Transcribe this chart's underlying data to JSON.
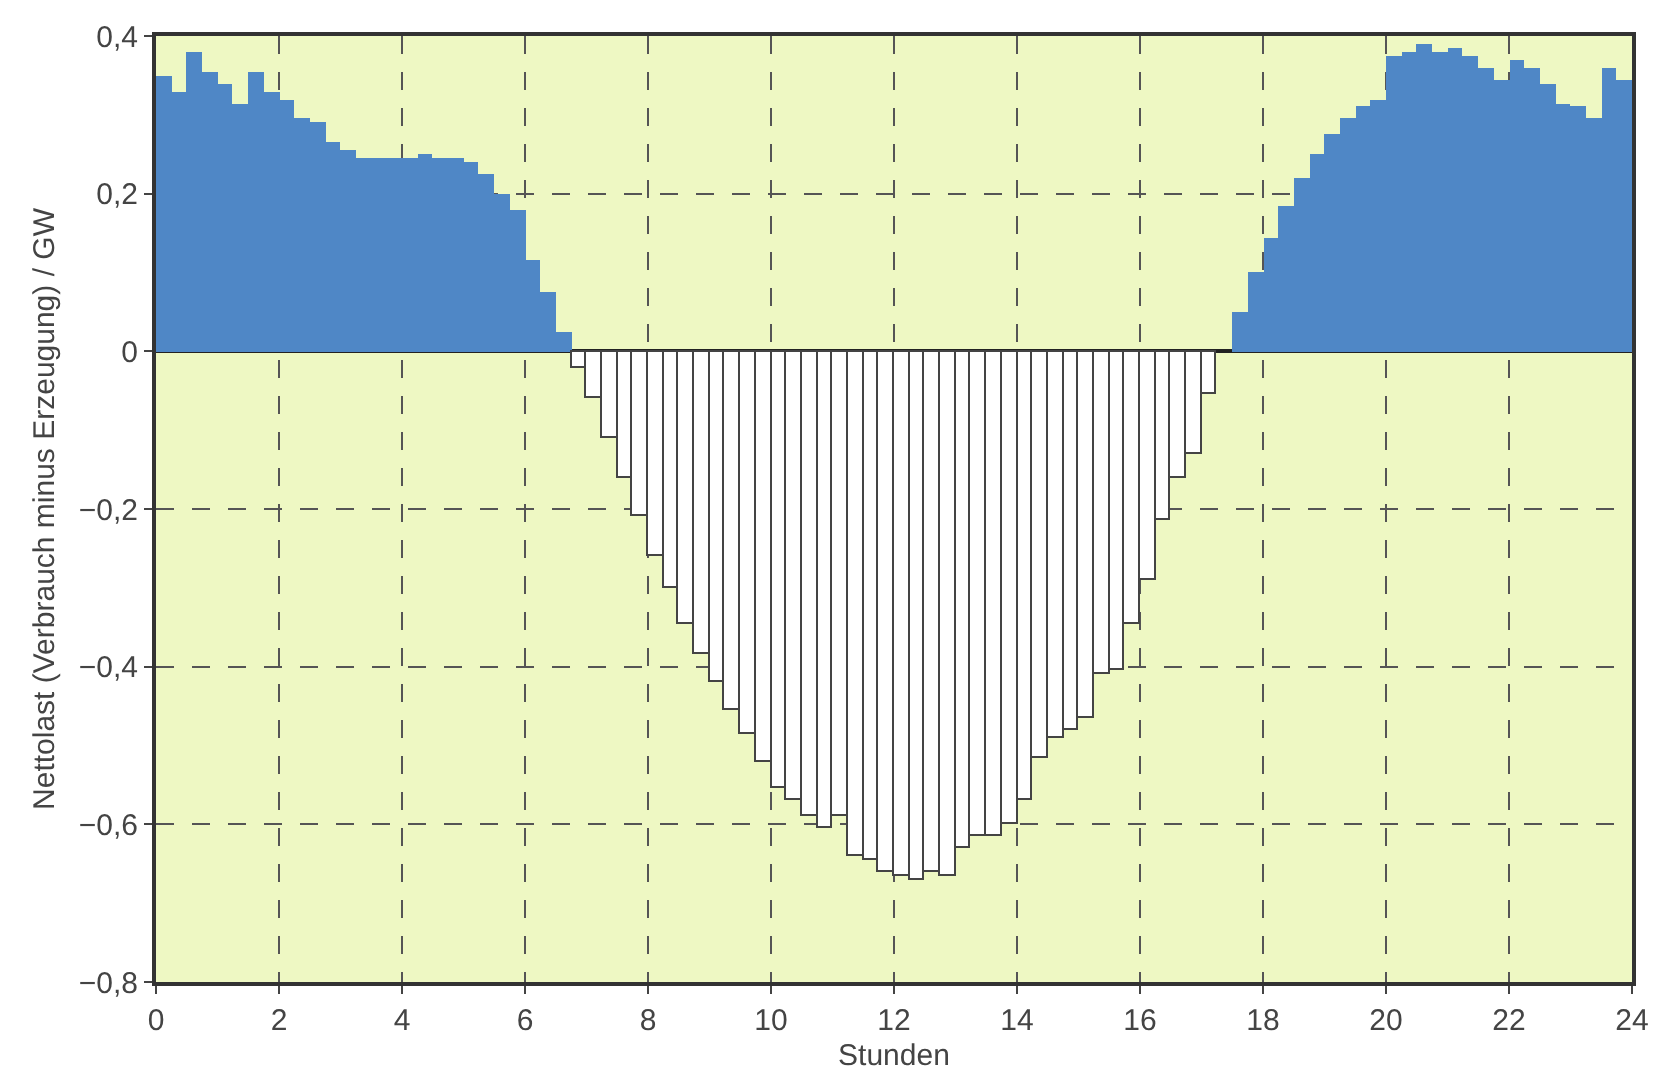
{
  "chart_data": {
    "type": "bar",
    "xlabel": "Stunden",
    "ylabel": "Nettolast (Verbrauch minus Erzeugung) / GW",
    "x": [
      0.125,
      0.375,
      0.625,
      0.875,
      1.125,
      1.375,
      1.625,
      1.875,
      2.125,
      2.375,
      2.625,
      2.875,
      3.125,
      3.375,
      3.625,
      3.875,
      4.125,
      4.375,
      4.625,
      4.875,
      5.125,
      5.375,
      5.625,
      5.875,
      6.125,
      6.375,
      6.625,
      6.875,
      7.125,
      7.375,
      7.625,
      7.875,
      8.125,
      8.375,
      8.625,
      8.875,
      9.125,
      9.375,
      9.625,
      9.875,
      10.125,
      10.375,
      10.625,
      10.875,
      11.125,
      11.375,
      11.625,
      11.875,
      12.125,
      12.375,
      12.625,
      12.875,
      13.125,
      13.375,
      13.625,
      13.875,
      14.125,
      14.375,
      14.625,
      14.875,
      15.125,
      15.375,
      15.625,
      15.875,
      16.125,
      16.375,
      16.625,
      16.875,
      17.125,
      17.375,
      17.625,
      17.875,
      18.125,
      18.375,
      18.625,
      18.875,
      19.125,
      19.375,
      19.625,
      19.875,
      20.125,
      20.375,
      20.625,
      20.875,
      21.125,
      21.375,
      21.625,
      21.875,
      22.125,
      22.375,
      22.625,
      22.875,
      23.125,
      23.375,
      23.625,
      23.875
    ],
    "series": [
      {
        "color": "#4f87c6",
        "values": [
          0.35,
          0.33,
          0.38,
          0.355,
          0.34,
          0.315,
          0.355,
          0.33,
          0.32,
          0.295,
          0.29,
          0.265,
          0.255,
          0.245,
          0.245,
          0.245,
          0.245,
          0.25,
          0.245,
          0.245,
          0.24,
          0.225,
          0.2,
          0.18,
          0.115,
          0.075,
          0.025,
          null,
          null,
          null,
          null,
          null,
          null,
          null,
          null,
          null,
          null,
          null,
          null,
          null,
          null,
          null,
          null,
          null,
          null,
          null,
          null,
          null,
          null,
          null,
          null,
          null,
          null,
          null,
          null,
          null,
          null,
          null,
          null,
          null,
          null,
          null,
          null,
          null,
          null,
          null,
          null,
          null,
          null,
          null,
          0.05,
          0.1,
          0.145,
          0.185,
          0.22,
          0.25,
          0.275,
          0.295,
          0.31,
          0.32,
          0.375,
          0.38,
          0.39,
          0.38,
          0.385,
          0.375,
          0.36,
          0.345,
          0.37,
          0.36,
          0.34,
          0.315,
          0.31,
          0.295,
          0.36,
          0.345
        ]
      },
      {
        "color": "#ffffff",
        "values": [
          null,
          null,
          null,
          null,
          null,
          null,
          null,
          null,
          null,
          null,
          null,
          null,
          null,
          null,
          null,
          null,
          null,
          null,
          null,
          null,
          null,
          null,
          null,
          null,
          null,
          null,
          null,
          -0.02,
          -0.06,
          -0.11,
          -0.16,
          -0.21,
          -0.26,
          -0.3,
          -0.345,
          -0.385,
          -0.42,
          -0.455,
          -0.485,
          -0.52,
          -0.555,
          -0.57,
          -0.59,
          -0.605,
          -0.59,
          -0.64,
          -0.645,
          -0.66,
          -0.665,
          -0.67,
          -0.66,
          -0.665,
          -0.63,
          -0.615,
          -0.615,
          -0.6,
          -0.57,
          -0.515,
          -0.49,
          -0.48,
          -0.465,
          -0.41,
          -0.405,
          -0.345,
          -0.29,
          -0.215,
          -0.16,
          -0.13,
          -0.055,
          null,
          null,
          null,
          null,
          null,
          null,
          null,
          null,
          null,
          null,
          null,
          null,
          null,
          null,
          null,
          null,
          null,
          null,
          null,
          null,
          null,
          null,
          null,
          null,
          null,
          null,
          null
        ]
      }
    ],
    "xlim": [
      0,
      24
    ],
    "xticks": [
      0,
      2,
      4,
      6,
      8,
      10,
      12,
      14,
      16,
      18,
      20,
      22,
      24
    ],
    "ylim": [
      -0.8,
      0.4
    ],
    "yticks": [
      {
        "value": -0.8,
        "label": "−0,8"
      },
      {
        "value": -0.6,
        "label": "−0,6"
      },
      {
        "value": -0.4,
        "label": "−0,4"
      },
      {
        "value": -0.2,
        "label": "−0,2"
      },
      0,
      {
        "value": 0.2,
        "label": "0,2"
      },
      {
        "value": 0.4,
        "label": "0,4"
      }
    ],
    "grid": true
  }
}
